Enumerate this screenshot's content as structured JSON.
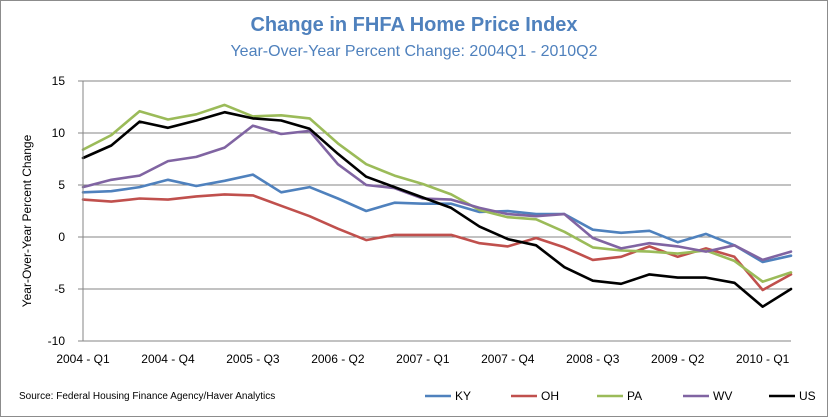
{
  "chart_data": {
    "type": "line",
    "title": "Change in FHFA Home Price Index",
    "subtitle": "Year-Over-Year Percent Change: 2004Q1 - 2010Q2",
    "ylabel": "Year-Over-Year Percent Change",
    "xlabel": "",
    "source": "Source: Federal Housing Finance Agency/Haver Analytics",
    "ylim": [
      -10,
      15
    ],
    "yticks": [
      15,
      10,
      5,
      0,
      -5,
      -10
    ],
    "grid": "horizontal",
    "legend_position": "bottom-right",
    "x": [
      "2004Q1",
      "2004Q2",
      "2004Q3",
      "2004Q4",
      "2005Q1",
      "2005Q2",
      "2005Q3",
      "2005Q4",
      "2006Q1",
      "2006Q2",
      "2006Q3",
      "2006Q4",
      "2007Q1",
      "2007Q2",
      "2007Q3",
      "2007Q4",
      "2008Q1",
      "2008Q2",
      "2008Q3",
      "2008Q4",
      "2009Q1",
      "2009Q2",
      "2009Q3",
      "2009Q4",
      "2010Q1",
      "2010Q2"
    ],
    "xtick_labels": [
      {
        "index": 0,
        "label": "2004 - Q1"
      },
      {
        "index": 3,
        "label": "2004 - Q4"
      },
      {
        "index": 6,
        "label": "2005 - Q3"
      },
      {
        "index": 9,
        "label": "2006 - Q2"
      },
      {
        "index": 12,
        "label": "2007 - Q1"
      },
      {
        "index": 15,
        "label": "2007 - Q4"
      },
      {
        "index": 18,
        "label": "2008 - Q3"
      },
      {
        "index": 21,
        "label": "2009 - Q2"
      },
      {
        "index": 24,
        "label": "2010 - Q1"
      }
    ],
    "series": [
      {
        "name": "KY",
        "color": "#4f81bd",
        "values": [
          4.3,
          4.4,
          4.8,
          5.5,
          4.9,
          5.4,
          6.0,
          4.3,
          4.8,
          3.7,
          2.5,
          3.3,
          3.2,
          3.2,
          2.4,
          2.5,
          2.2,
          2.2,
          0.7,
          0.4,
          0.6,
          -0.5,
          0.3,
          -0.8,
          -2.4,
          -1.8
        ]
      },
      {
        "name": "OH",
        "color": "#c0504d",
        "values": [
          3.6,
          3.4,
          3.7,
          3.6,
          3.9,
          4.1,
          4.0,
          3.0,
          2.0,
          0.8,
          -0.3,
          0.2,
          0.2,
          0.2,
          -0.6,
          -0.9,
          -0.1,
          -1.0,
          -2.2,
          -1.9,
          -0.9,
          -1.9,
          -1.1,
          -1.9,
          -5.1,
          -3.6
        ]
      },
      {
        "name": "PA",
        "color": "#9bbb59",
        "values": [
          8.4,
          9.8,
          12.1,
          11.3,
          11.8,
          12.7,
          11.6,
          11.7,
          11.4,
          9.0,
          7.0,
          5.9,
          5.1,
          4.1,
          2.6,
          1.9,
          1.7,
          0.5,
          -1.0,
          -1.3,
          -1.4,
          -1.6,
          -1.3,
          -2.3,
          -4.3,
          -3.4
        ]
      },
      {
        "name": "WV",
        "color": "#8064a2",
        "values": [
          4.8,
          5.5,
          5.9,
          7.3,
          7.7,
          8.6,
          10.7,
          9.9,
          10.2,
          7.0,
          5.0,
          4.7,
          3.7,
          3.6,
          2.8,
          2.2,
          2.0,
          2.2,
          -0.1,
          -1.1,
          -0.6,
          -0.9,
          -1.4,
          -0.8,
          -2.2,
          -1.4
        ]
      },
      {
        "name": "US",
        "color": "#000000",
        "values": [
          7.6,
          8.8,
          11.1,
          10.5,
          11.2,
          12.0,
          11.4,
          11.2,
          10.4,
          8.0,
          5.8,
          4.8,
          3.8,
          2.8,
          1.0,
          -0.2,
          -0.8,
          -2.9,
          -4.2,
          -4.5,
          -3.6,
          -3.9,
          -3.9,
          -4.4,
          -6.7,
          -5.0
        ]
      }
    ]
  }
}
